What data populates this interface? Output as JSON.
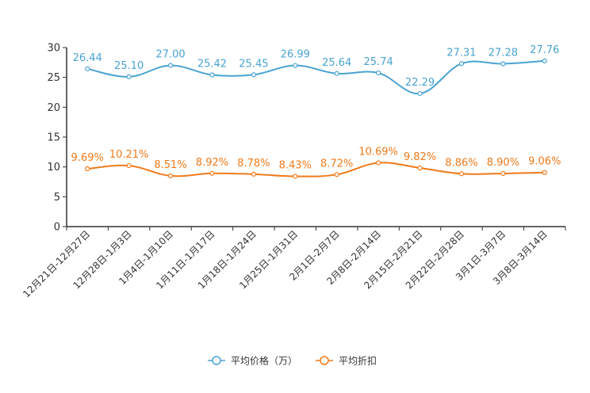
{
  "chart_data": {
    "type": "line",
    "categories": [
      "12月21日-12月27日",
      "12月28日-1月3日",
      "1月4日-1月10日",
      "1月11日-1月17日",
      "1月18日-1月24日",
      "1月25日-1月31日",
      "2月1日-2月7日",
      "2月8日-2月14日",
      "2月15日-2月21日",
      "2月22日-2月28日",
      "3月1日-3月7日",
      "3月8日-3月14日"
    ],
    "series": [
      {
        "name": "平均价格（万）",
        "color": "#4aa3d2",
        "values": [
          26.44,
          25.1,
          27.0,
          25.42,
          25.45,
          26.99,
          25.64,
          25.74,
          22.29,
          27.31,
          27.28,
          27.76
        ],
        "labels": [
          "26.44",
          "25.10",
          "27.00",
          "25.42",
          "25.45",
          "26.99",
          "25.64",
          "25.74",
          "22.29",
          "27.31",
          "27.28",
          "27.76"
        ]
      },
      {
        "name": "平均折扣",
        "color": "#f07a1a",
        "values": [
          9.69,
          10.21,
          8.51,
          8.92,
          8.78,
          8.43,
          8.72,
          10.69,
          9.82,
          8.86,
          8.9,
          9.06
        ],
        "labels": [
          "9.69%",
          "10.21%",
          "8.51%",
          "8.92%",
          "8.78%",
          "8.43%",
          "8.72%",
          "10.69%",
          "9.82%",
          "8.86%",
          "8.90%",
          "9.06%"
        ]
      }
    ],
    "yticks": [
      "0",
      "5",
      "10",
      "15",
      "20",
      "25",
      "30"
    ],
    "ylim": [
      0,
      30
    ],
    "xlabel": "",
    "ylabel": "",
    "grid": false,
    "legend_position": "bottom-center"
  }
}
